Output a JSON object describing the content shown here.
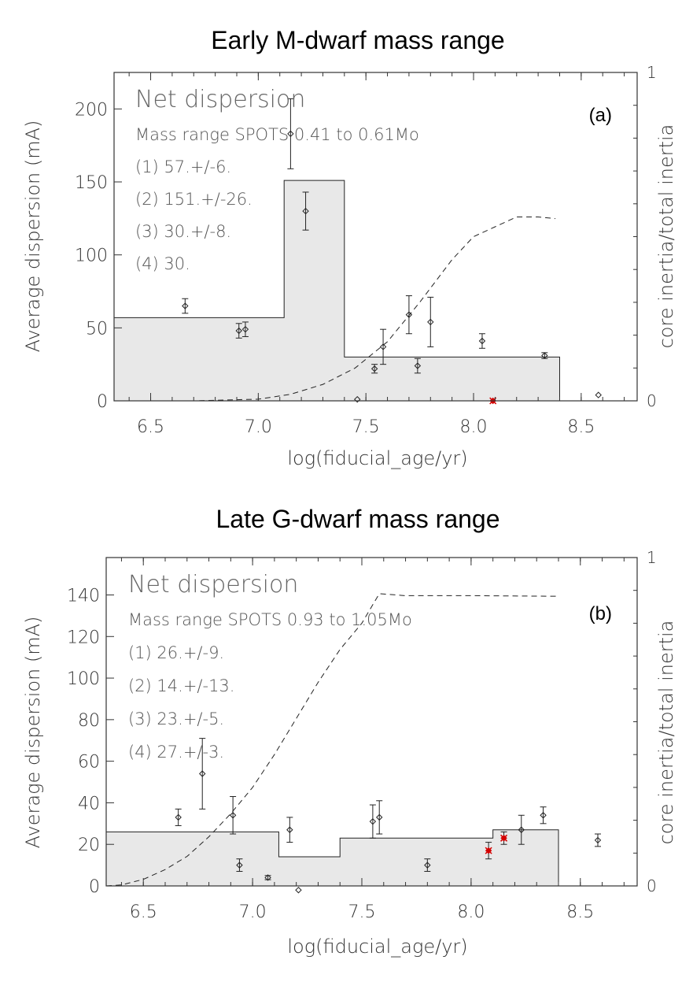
{
  "chart_data": [
    {
      "type": "bar",
      "panel_label": "(a)",
      "title": "Early M-dwarf mass range",
      "xlabel": "log(fiducial_age/yr)",
      "ylabel": "Average dispersion (mA)",
      "y2label": "core inertia/total inertia",
      "xlim": [
        6.33,
        8.76
      ],
      "ylim": [
        0,
        225
      ],
      "y2lim": [
        0,
        1
      ],
      "x_ticks": [
        "6.5",
        "7.0",
        "7.5",
        "8.0",
        "8.5"
      ],
      "y_ticks": [
        "0",
        "50",
        "100",
        "150",
        "200"
      ],
      "y2_ticks": [
        "0",
        "1"
      ],
      "annotation_title": "Net dispersion",
      "annotation_lines": [
        "Mass range SPOTS 0.41 to 0.61Mo",
        "(1)  57.+/-6.",
        "(2) 151.+/-26.",
        "(3)  30.+/-8.",
        "(4)  30."
      ],
      "histogram": [
        {
          "x0": 6.33,
          "x1": 7.12,
          "value": 57
        },
        {
          "x0": 7.12,
          "x1": 7.4,
          "value": 151
        },
        {
          "x0": 7.4,
          "x1": 8.1,
          "value": 30
        },
        {
          "x0": 8.1,
          "x1": 8.4,
          "value": 30
        }
      ],
      "points": [
        {
          "x": 6.66,
          "y": 65,
          "err": 5
        },
        {
          "x": 6.91,
          "y": 48,
          "err": 5
        },
        {
          "x": 6.94,
          "y": 49,
          "err": 5
        },
        {
          "x": 7.15,
          "y": 183,
          "err": 24
        },
        {
          "x": 7.22,
          "y": 130,
          "err": 13
        },
        {
          "x": 7.54,
          "y": 22,
          "err": 3
        },
        {
          "x": 7.58,
          "y": 37,
          "err": 12
        },
        {
          "x": 7.7,
          "y": 59,
          "err": 13
        },
        {
          "x": 7.74,
          "y": 24,
          "err": 5
        },
        {
          "x": 7.8,
          "y": 54,
          "err": 17
        },
        {
          "x": 8.04,
          "y": 41,
          "err": 5
        },
        {
          "x": 8.33,
          "y": 31,
          "err": 2
        },
        {
          "x": 7.46,
          "y": 1,
          "err": 0
        },
        {
          "x": 8.58,
          "y": 4,
          "err": 0
        }
      ],
      "red_points": [
        {
          "x": 8.09,
          "y": 0,
          "err": 0
        }
      ],
      "inertia_curve": {
        "x": [
          6.33,
          6.7,
          7.0,
          7.15,
          7.3,
          7.45,
          7.6,
          7.75,
          7.9,
          8.0,
          8.1,
          8.2,
          8.3,
          8.38
        ],
        "y": [
          0,
          0.0,
          0.005,
          0.02,
          0.05,
          0.1,
          0.18,
          0.3,
          0.43,
          0.5,
          0.53,
          0.56,
          0.56,
          0.555
        ]
      }
    },
    {
      "type": "bar",
      "panel_label": "(b)",
      "title": "Late G-dwarf mass range",
      "xlabel": "log(fiducial_age/yr)",
      "ylabel": "Average dispersion (mA)",
      "y2label": "core inertia/total inertia",
      "xlim": [
        6.33,
        8.76
      ],
      "ylim": [
        0,
        158
      ],
      "y2lim": [
        0,
        1
      ],
      "x_ticks": [
        "6.5",
        "7.0",
        "7.5",
        "8.0",
        "8.5"
      ],
      "y_ticks": [
        "0",
        "20",
        "40",
        "60",
        "80",
        "100",
        "120",
        "140"
      ],
      "y2_ticks": [
        "0",
        "1"
      ],
      "annotation_title": "Net dispersion",
      "annotation_lines": [
        "Mass range SPOTS 0.93 to 1.05Mo",
        "(1)  26.+/-9.",
        "(2)  14.+/-13.",
        "(3)  23.+/-5.",
        "(4)  27.+/-3."
      ],
      "histogram": [
        {
          "x0": 6.33,
          "x1": 7.12,
          "value": 26
        },
        {
          "x0": 7.12,
          "x1": 7.4,
          "value": 14
        },
        {
          "x0": 7.4,
          "x1": 8.1,
          "value": 23
        },
        {
          "x0": 8.1,
          "x1": 8.4,
          "value": 27
        }
      ],
      "points": [
        {
          "x": 6.66,
          "y": 33,
          "err": 4
        },
        {
          "x": 6.77,
          "y": 54,
          "err": 17
        },
        {
          "x": 6.91,
          "y": 34,
          "err": 9
        },
        {
          "x": 6.94,
          "y": 10,
          "err": 3
        },
        {
          "x": 7.07,
          "y": 4,
          "err": 1
        },
        {
          "x": 7.17,
          "y": 27,
          "err": 6
        },
        {
          "x": 7.21,
          "y": -2,
          "err": 0
        },
        {
          "x": 7.55,
          "y": 31,
          "err": 8
        },
        {
          "x": 7.58,
          "y": 33,
          "err": 8
        },
        {
          "x": 7.8,
          "y": 10,
          "err": 3
        },
        {
          "x": 8.23,
          "y": 27,
          "err": 7
        },
        {
          "x": 8.33,
          "y": 34,
          "err": 4
        },
        {
          "x": 8.58,
          "y": 22,
          "err": 3
        }
      ],
      "red_points": [
        {
          "x": 8.08,
          "y": 17,
          "err": 4
        },
        {
          "x": 8.15,
          "y": 23,
          "err": 3
        }
      ],
      "inertia_curve": {
        "x": [
          6.33,
          6.4,
          6.5,
          6.6,
          6.7,
          6.8,
          6.9,
          7.0,
          7.1,
          7.2,
          7.3,
          7.4,
          7.5,
          7.58,
          7.7,
          8.0,
          8.4
        ],
        "y": [
          0,
          0.003,
          0.02,
          0.05,
          0.09,
          0.15,
          0.22,
          0.3,
          0.4,
          0.51,
          0.62,
          0.72,
          0.8,
          0.89,
          0.884,
          0.884,
          0.882
        ]
      }
    }
  ]
}
